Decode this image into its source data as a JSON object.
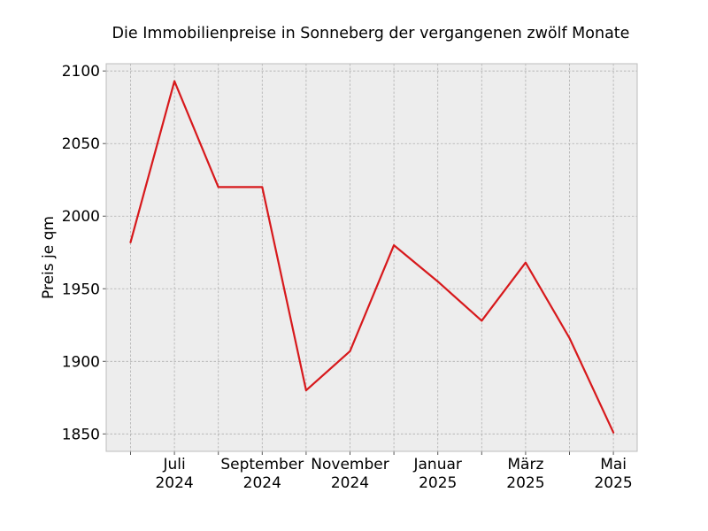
{
  "chart_data": {
    "type": "line",
    "title": "Die Immobilienpreise in Sonneberg der vergangenen zwölf Monate",
    "xlabel": "",
    "ylabel": "Preis je qm",
    "x": [
      "2024-06",
      "2024-07",
      "2024-08",
      "2024-09",
      "2024-10",
      "2024-11",
      "2024-12",
      "2025-01",
      "2025-02",
      "2025-03",
      "2025-04",
      "2025-05"
    ],
    "x_tick_labels": [
      {
        "x": "2024-07",
        "lines": [
          "Juli",
          "2024"
        ]
      },
      {
        "x": "2024-09",
        "lines": [
          "September",
          "2024"
        ]
      },
      {
        "x": "2024-11",
        "lines": [
          "November",
          "2024"
        ]
      },
      {
        "x": "2025-01",
        "lines": [
          "Januar",
          "2025"
        ]
      },
      {
        "x": "2025-03",
        "lines": [
          "März",
          "2025"
        ]
      },
      {
        "x": "2025-05",
        "lines": [
          "Mai",
          "2025"
        ]
      }
    ],
    "series": [
      {
        "values": [
          1982,
          2093,
          2020,
          2020,
          1880,
          1907,
          1980,
          1955,
          1928,
          1968,
          1916,
          1851
        ]
      }
    ],
    "yticks": [
      1850,
      1900,
      1950,
      2000,
      2050,
      2100
    ],
    "y_tick_labels": [
      "1850",
      "1900",
      "1950",
      "2000",
      "2050",
      "2100"
    ],
    "ylim": [
      1838,
      2105
    ],
    "grid": true,
    "colors": {
      "line": "#d7191c",
      "plot_background": "#ededed",
      "grid": "#b0b0b0",
      "axes_edge": "#bcbcbc"
    }
  }
}
